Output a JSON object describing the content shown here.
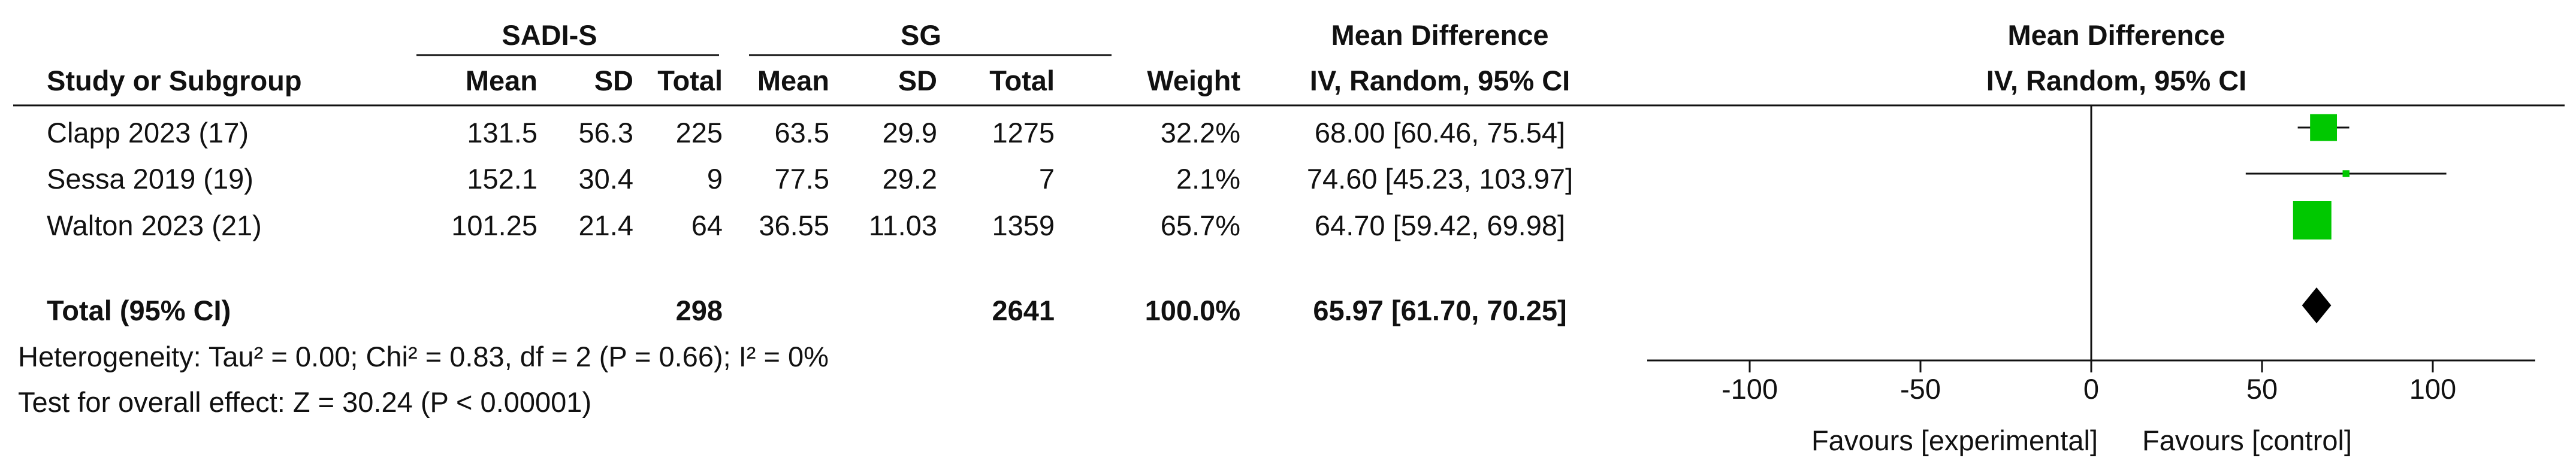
{
  "header": {
    "group1": "SADI-S",
    "group2": "SG",
    "md_table_title": "Mean Difference",
    "md_table_method": "IV, Random, 95% CI",
    "md_plot_title": "Mean Difference",
    "md_plot_method": "IV, Random, 95% CI",
    "col_study": "Study or Subgroup",
    "col_mean1": "Mean",
    "col_sd1": "SD",
    "col_total1": "Total",
    "col_mean2": "Mean",
    "col_sd2": "SD",
    "col_total2": "Total",
    "col_weight": "Weight"
  },
  "studies": [
    {
      "name": "Clapp 2023 (17)",
      "mean1": "131.5",
      "sd1": "56.3",
      "total1": "225",
      "mean2": "63.5",
      "sd2": "29.9",
      "total2": "1275",
      "weight": "32.2%",
      "ci_text": "68.00 [60.46, 75.54]"
    },
    {
      "name": "Sessa 2019 (19)",
      "mean1": "152.1",
      "sd1": "30.4",
      "total1": "9",
      "mean2": "77.5",
      "sd2": "29.2",
      "total2": "7",
      "weight": "2.1%",
      "ci_text": "74.60 [45.23, 103.97]"
    },
    {
      "name": "Walton 2023 (21)",
      "mean1": "101.25",
      "sd1": "21.4",
      "total1": "64",
      "mean2": "36.55",
      "sd2": "11.03",
      "total2": "1359",
      "weight": "65.7%",
      "ci_text": "64.70 [59.42, 69.98]"
    }
  ],
  "total": {
    "label": "Total (95% CI)",
    "total1": "298",
    "total2": "2641",
    "weight": "100.0%",
    "ci_text": "65.97 [61.70, 70.25]"
  },
  "footer": {
    "heterogeneity": "Heterogeneity: Tau² = 0.00; Chi² = 0.83, df = 2 (P = 0.66); I² = 0%",
    "overall_effect": "Test for overall effect: Z = 30.24 (P < 0.00001)",
    "favours_left": "Favours [experimental]",
    "favours_right": "Favours [control]"
  },
  "chart_data": {
    "type": "forest",
    "x_range": [
      -130,
      130
    ],
    "ticks": [
      -100,
      -50,
      0,
      50,
      100
    ],
    "tick_labels": [
      "-100",
      "-50",
      "0",
      "50",
      "100"
    ],
    "marker_color": "#00c800",
    "diamond_color": "#000000",
    "points": [
      {
        "estimate": 68.0,
        "lower": 60.46,
        "upper": 75.54,
        "weight": 32.2
      },
      {
        "estimate": 74.6,
        "lower": 45.23,
        "upper": 103.97,
        "weight": 2.1
      },
      {
        "estimate": 64.7,
        "lower": 59.42,
        "upper": 69.98,
        "weight": 65.7
      }
    ],
    "pooled": {
      "estimate": 65.97,
      "lower": 61.7,
      "upper": 70.25
    }
  }
}
